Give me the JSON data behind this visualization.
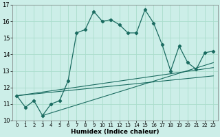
{
  "title": "",
  "xlabel": "Humidex (Indice chaleur)",
  "bg_color": "#cceee8",
  "grid_color": "#aaddcc",
  "line_color": "#1a6b60",
  "xlim": [
    -0.5,
    23.5
  ],
  "ylim": [
    10,
    17
  ],
  "xticks": [
    0,
    1,
    2,
    3,
    4,
    5,
    6,
    7,
    8,
    9,
    10,
    11,
    12,
    13,
    14,
    15,
    16,
    17,
    18,
    19,
    20,
    21,
    22,
    23
  ],
  "yticks": [
    10,
    11,
    12,
    13,
    14,
    15,
    16,
    17
  ],
  "series1_x": [
    0,
    1,
    2,
    3,
    4,
    5,
    6,
    7,
    8,
    9,
    10,
    11,
    12,
    13,
    14,
    15,
    16,
    17,
    18,
    19,
    20,
    21,
    22,
    23
  ],
  "series1_y": [
    11.5,
    10.8,
    11.2,
    10.3,
    11.0,
    11.2,
    12.4,
    15.3,
    15.5,
    16.6,
    16.0,
    16.1,
    15.8,
    15.3,
    15.3,
    16.7,
    15.9,
    14.6,
    13.0,
    14.5,
    13.5,
    13.1,
    14.1,
    14.2
  ],
  "line1_x": [
    0,
    23
  ],
  "line1_y": [
    11.5,
    13.2
  ],
  "line2_x": [
    0,
    23
  ],
  "line2_y": [
    11.5,
    12.7
  ],
  "line3_x": [
    3,
    23
  ],
  "line3_y": [
    10.3,
    13.5
  ]
}
